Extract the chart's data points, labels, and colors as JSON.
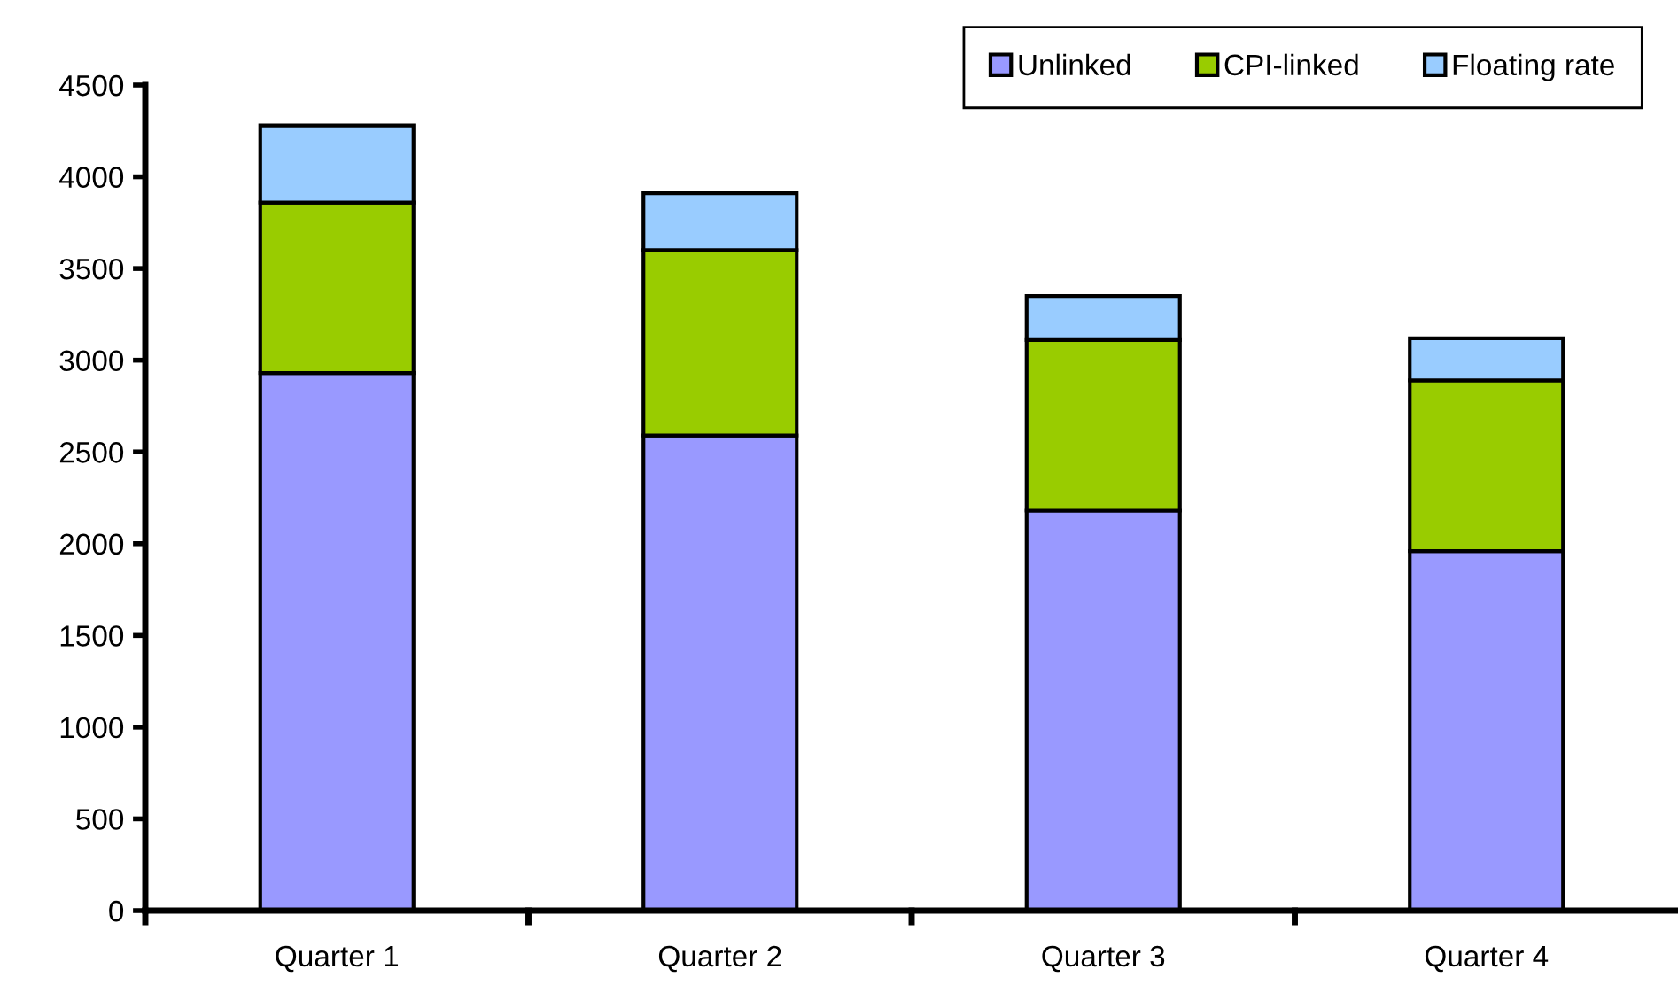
{
  "chart_data": {
    "type": "bar",
    "stacked": true,
    "categories": [
      "Quarter 1",
      "Quarter 2",
      "Quarter 3",
      "Quarter 4"
    ],
    "series": [
      {
        "name": "Unlinked",
        "color": "#9999ff",
        "values": [
          2930,
          2590,
          2180,
          1960
        ]
      },
      {
        "name": "CPI-linked",
        "color": "#99cc00",
        "values": [
          930,
          1010,
          930,
          930
        ]
      },
      {
        "name": "Floating rate",
        "color": "#99ccff",
        "values": [
          420,
          310,
          240,
          230
        ]
      }
    ],
    "ylim": [
      0,
      4500
    ],
    "yticks": [
      0,
      500,
      1000,
      1500,
      2000,
      2500,
      3000,
      3500,
      4000,
      4500
    ],
    "grid": false,
    "legend": "top right"
  }
}
